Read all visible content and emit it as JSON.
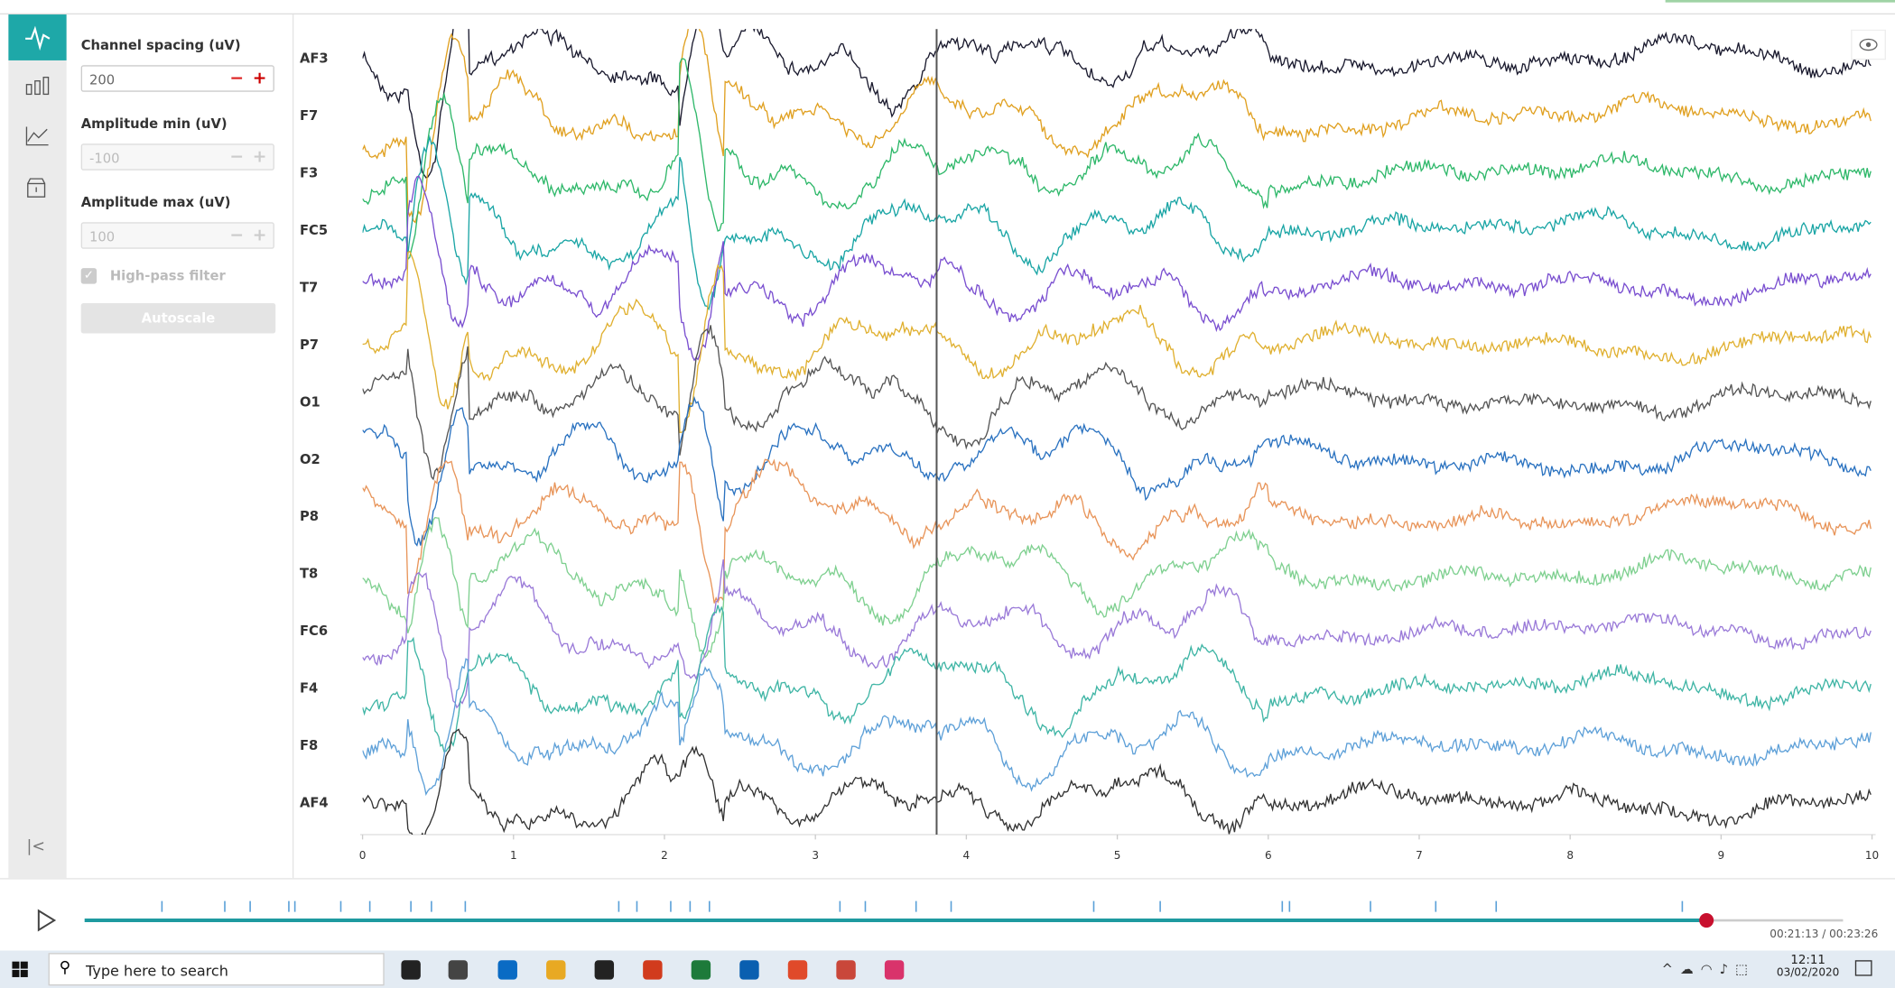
{
  "settings": {
    "channel_spacing": {
      "label": "Channel spacing (uV)",
      "value": "200"
    },
    "amplitude_min": {
      "label": "Amplitude min (uV)",
      "value": "-100"
    },
    "amplitude_max": {
      "label": "Amplitude max (uV)",
      "value": "100"
    },
    "high_pass_filter": "High-pass filter",
    "autoscale": "Autoscale"
  },
  "chart_data": {
    "type": "line",
    "channels": [
      {
        "name": "AF3",
        "color": "#1a1a2e"
      },
      {
        "name": "F7",
        "color": "#e0a020"
      },
      {
        "name": "F3",
        "color": "#2fb86a"
      },
      {
        "name": "FC5",
        "color": "#1aa5a5"
      },
      {
        "name": "T7",
        "color": "#7a4fd0"
      },
      {
        "name": "P7",
        "color": "#e0b030"
      },
      {
        "name": "O1",
        "color": "#555555"
      },
      {
        "name": "O2",
        "color": "#2a72c0"
      },
      {
        "name": "P8",
        "color": "#e8955a"
      },
      {
        "name": "T8",
        "color": "#7fd090"
      },
      {
        "name": "FC6",
        "color": "#9a7ad8"
      },
      {
        "name": "F4",
        "color": "#3fb5a5"
      },
      {
        "name": "F8",
        "color": "#5ea0d8"
      },
      {
        "name": "AF4",
        "color": "#333333"
      }
    ],
    "xlim": [
      0,
      10
    ],
    "xticks": [
      0,
      1,
      2,
      3,
      4,
      5,
      6,
      7,
      8,
      9,
      10
    ]
  },
  "playback": {
    "time": "00:21:13 / 00:23:26"
  },
  "taskbar": {
    "search": "Type here to search",
    "time": "12:11",
    "date": "03/02/2020"
  }
}
